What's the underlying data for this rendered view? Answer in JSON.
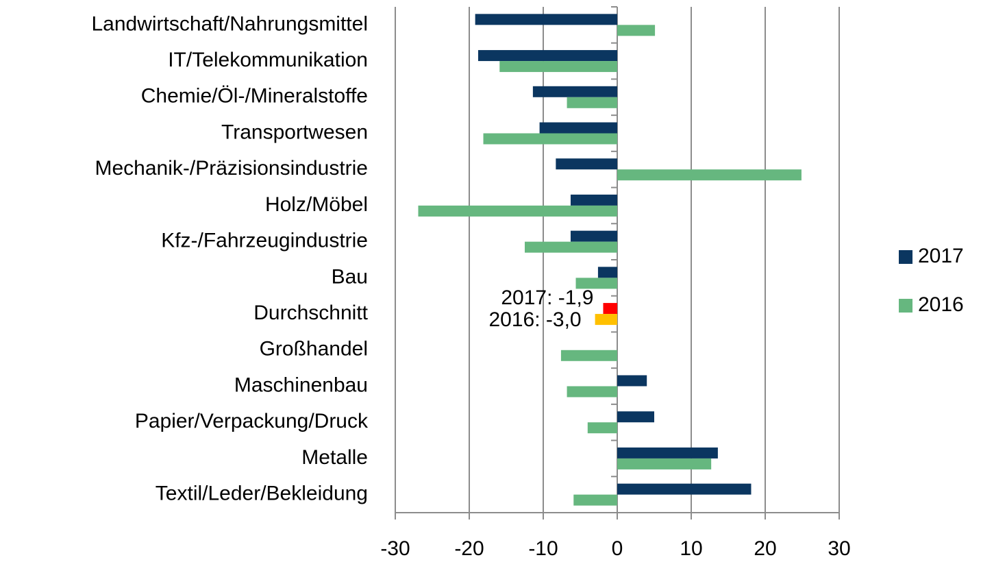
{
  "chart_data": {
    "type": "barh",
    "categories": [
      "Landwirtschaft/Nahrungsmittel",
      "IT/Telekommunikation",
      "Chemie/Öl-/Mineralstoffe",
      "Transportwesen",
      "Mechanik-/Präzisionsindustrie",
      "Holz/Möbel",
      "Kfz-/Fahrzeugindustrie",
      "Bau",
      "Durchschnitt",
      "Großhandel",
      "Maschinenbau",
      "Papier/Verpackung/Druck",
      "Metalle",
      "Textil/Leder/Bekleidung"
    ],
    "series": [
      {
        "name": "2017",
        "color": "#0b3660",
        "values": [
          -19.2,
          -18.8,
          -11.4,
          -10.5,
          -8.3,
          -6.3,
          -6.3,
          -2.6,
          -1.9,
          null,
          4.0,
          5.0,
          13.6,
          18.1
        ],
        "point_colors": [
          null,
          null,
          null,
          null,
          null,
          null,
          null,
          null,
          "#ff0000",
          null,
          null,
          null,
          null,
          null
        ],
        "value_labels": [
          null,
          null,
          null,
          null,
          null,
          null,
          null,
          null,
          "2017: -1,9",
          null,
          null,
          null,
          null,
          null
        ]
      },
      {
        "name": "2016",
        "color": "#66b77f",
        "values": [
          5.1,
          -15.9,
          -6.8,
          -18.1,
          24.9,
          -26.9,
          -12.5,
          -5.6,
          -3.0,
          -7.6,
          -6.8,
          -4.0,
          12.7,
          -5.9
        ],
        "point_colors": [
          null,
          null,
          null,
          null,
          null,
          null,
          null,
          null,
          "#ffc000",
          null,
          null,
          null,
          null,
          null
        ],
        "value_labels": [
          null,
          null,
          null,
          null,
          null,
          null,
          null,
          null,
          "2016: -3,0",
          null,
          null,
          null,
          null,
          null
        ]
      }
    ],
    "xlim": [
      -30,
      30
    ],
    "xticks": [
      -30,
      -20,
      -10,
      0,
      10,
      20,
      30
    ],
    "grid": true,
    "legend": "right"
  }
}
